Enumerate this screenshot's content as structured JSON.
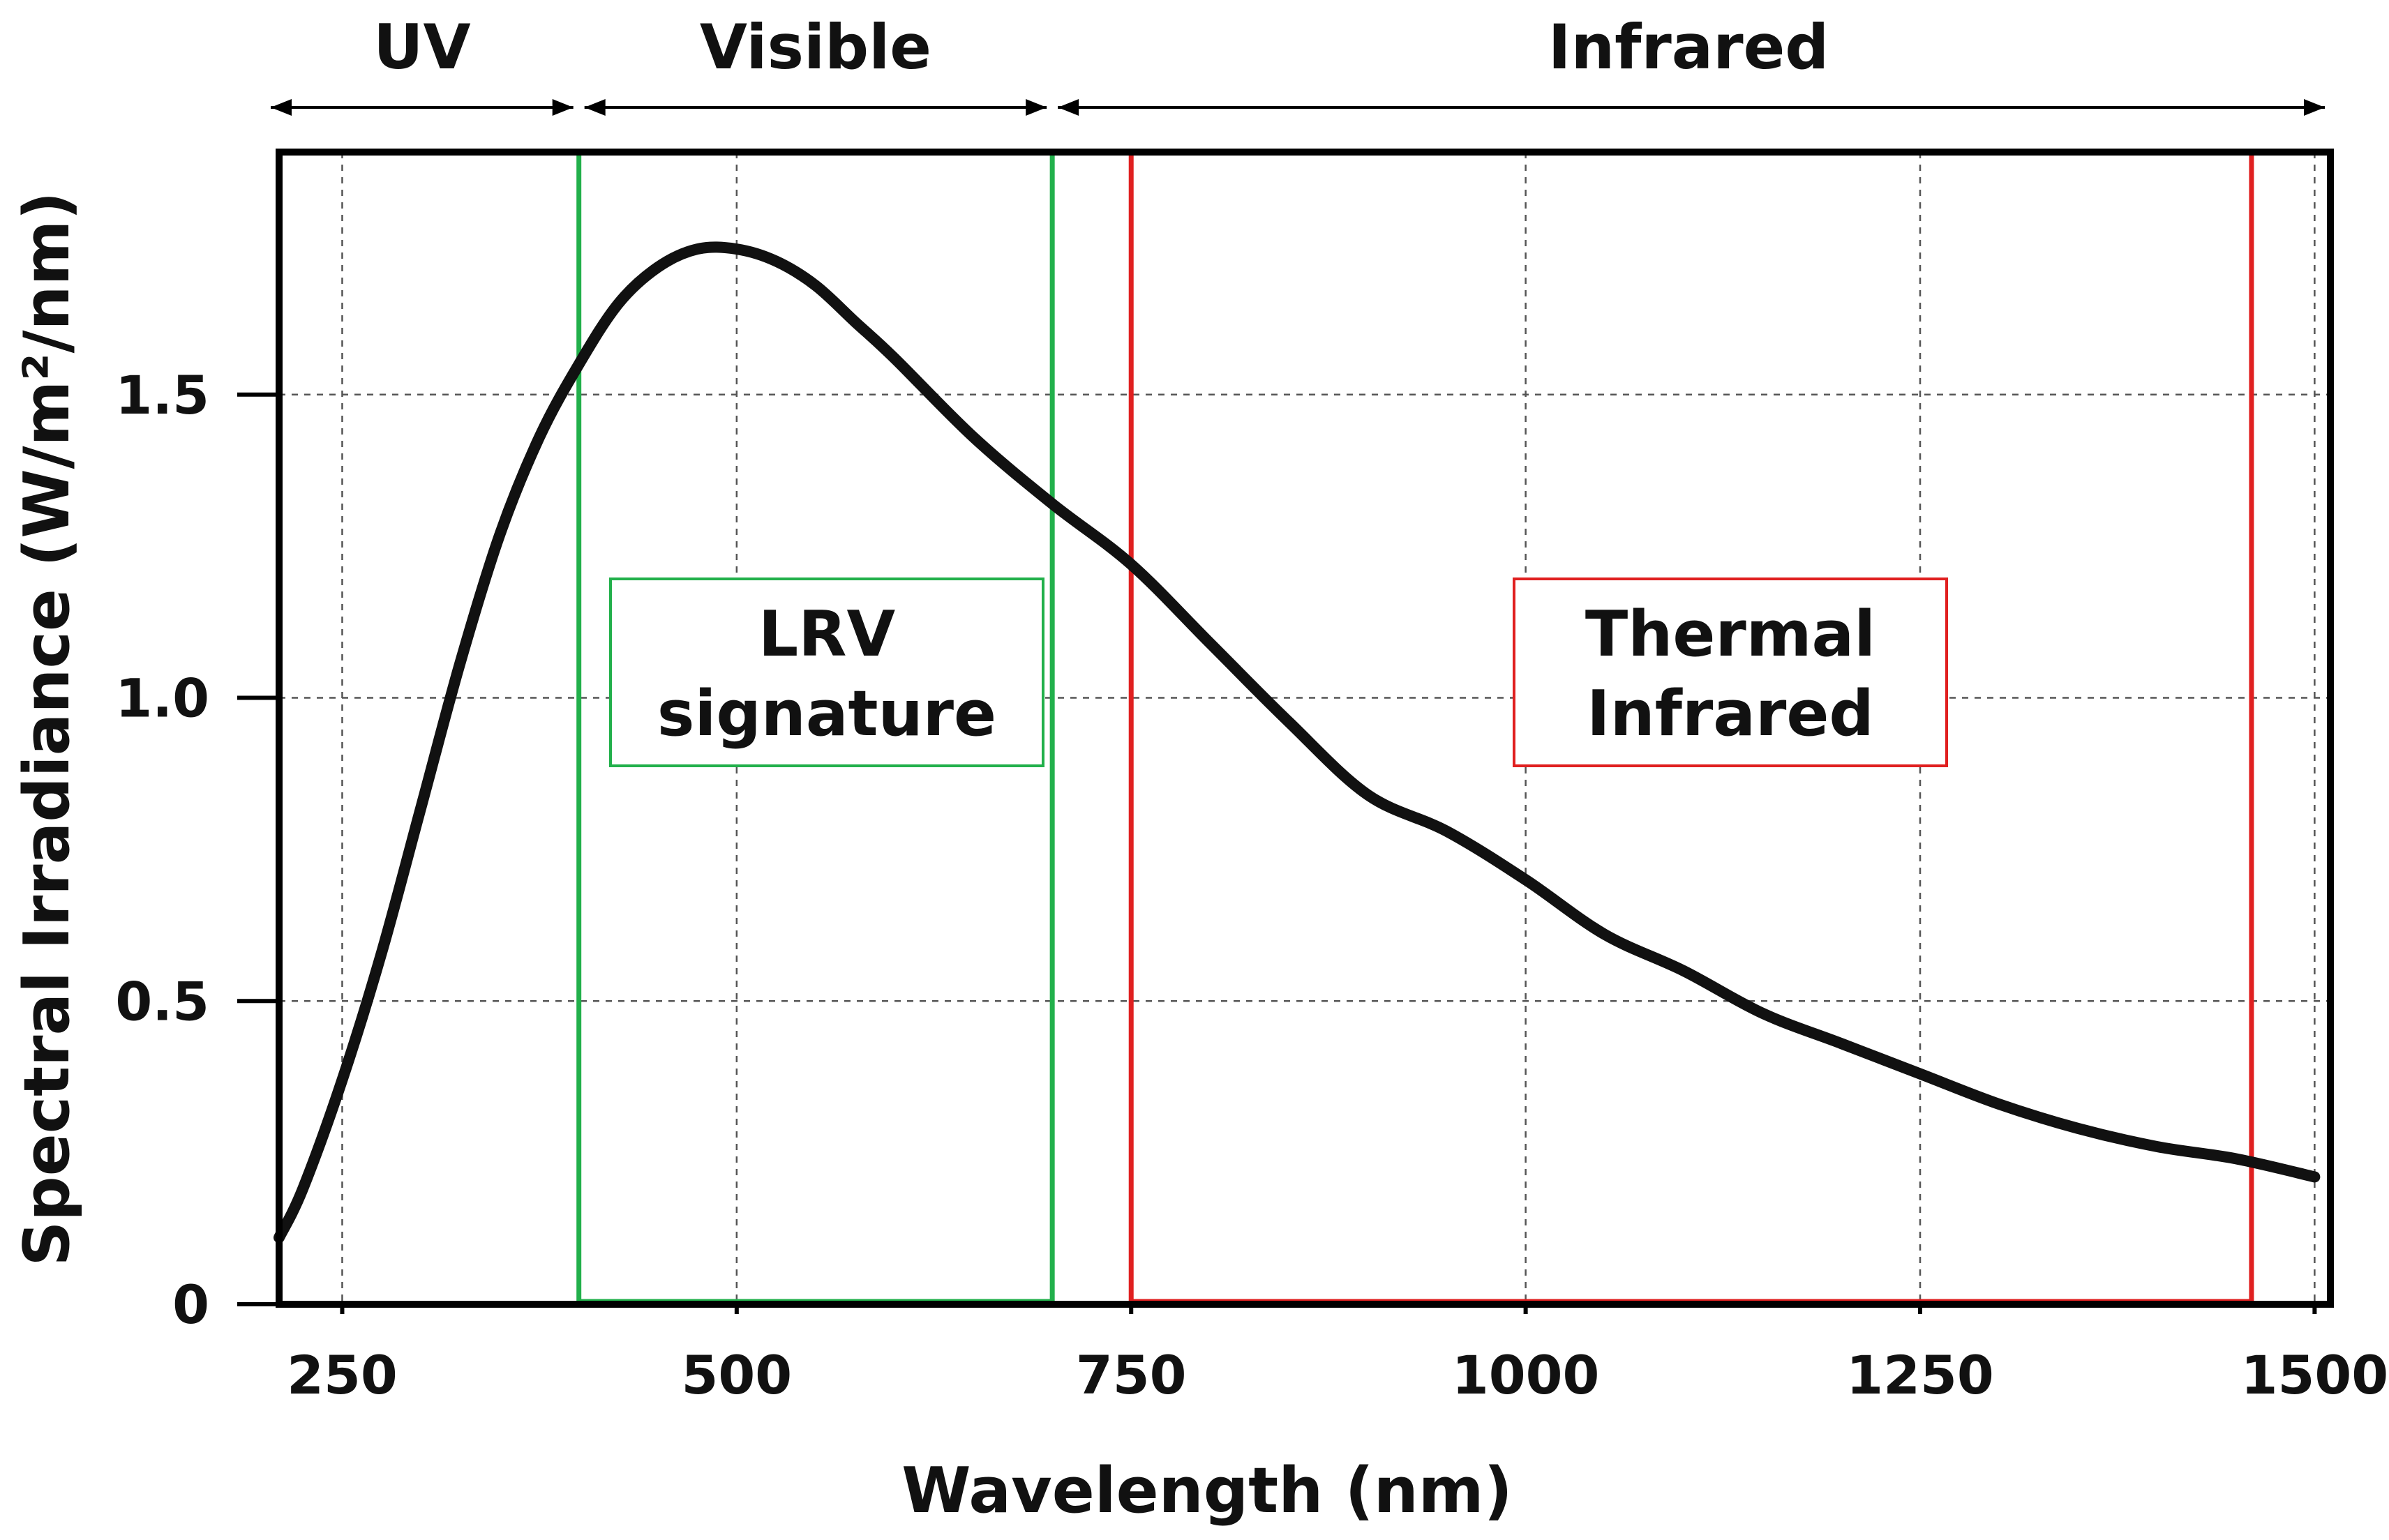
{
  "chart_data": {
    "type": "line",
    "title": "",
    "xlabel": "Wavelength (nm)",
    "ylabel": "Spectral Irradiance (W/m²/nm)",
    "xlim": [
      210,
      1510
    ],
    "ylim": [
      0,
      1.9
    ],
    "grid": true,
    "x_ticks": [
      250,
      500,
      750,
      1000,
      1250,
      1500
    ],
    "y_ticks": [
      {
        "value": 0,
        "label": "0"
      },
      {
        "value": 0.5,
        "label": "0.5"
      },
      {
        "value": 1.0,
        "label": "1.0"
      },
      {
        "value": 1.5,
        "label": "1.5"
      }
    ],
    "series": [
      {
        "name": "Spectral Irradiance",
        "x": [
          210,
          225,
          250,
          275,
          300,
          325,
          350,
          375,
          400,
          425,
          450,
          475,
          500,
          525,
          550,
          575,
          600,
          650,
          700,
          750,
          800,
          850,
          900,
          950,
          1000,
          1050,
          1100,
          1150,
          1200,
          1250,
          1300,
          1350,
          1400,
          1450,
          1500
        ],
        "y": [
          0.11,
          0.19,
          0.37,
          0.58,
          0.82,
          1.06,
          1.27,
          1.43,
          1.55,
          1.65,
          1.71,
          1.74,
          1.74,
          1.72,
          1.68,
          1.62,
          1.56,
          1.43,
          1.32,
          1.22,
          1.09,
          0.96,
          0.84,
          0.78,
          0.7,
          0.61,
          0.55,
          0.48,
          0.43,
          0.38,
          0.33,
          0.29,
          0.26,
          0.24,
          0.21
        ]
      }
    ],
    "regions": [
      {
        "label": "UV",
        "x_start": 210,
        "x_end": 400
      },
      {
        "label": "Visible",
        "x_start": 400,
        "x_end": 700
      },
      {
        "label": "Infrared",
        "x_start": 700,
        "x_end": 1510
      }
    ],
    "highlight_boxes": [
      {
        "label_lines": [
          "LRV",
          "signature"
        ],
        "x_start": 400,
        "x_end": 700,
        "color": "#22b04b"
      },
      {
        "label_lines": [
          "Thermal",
          "Infrared"
        ],
        "x_start": 750,
        "x_end": 1460,
        "color": "#e02020"
      }
    ]
  }
}
